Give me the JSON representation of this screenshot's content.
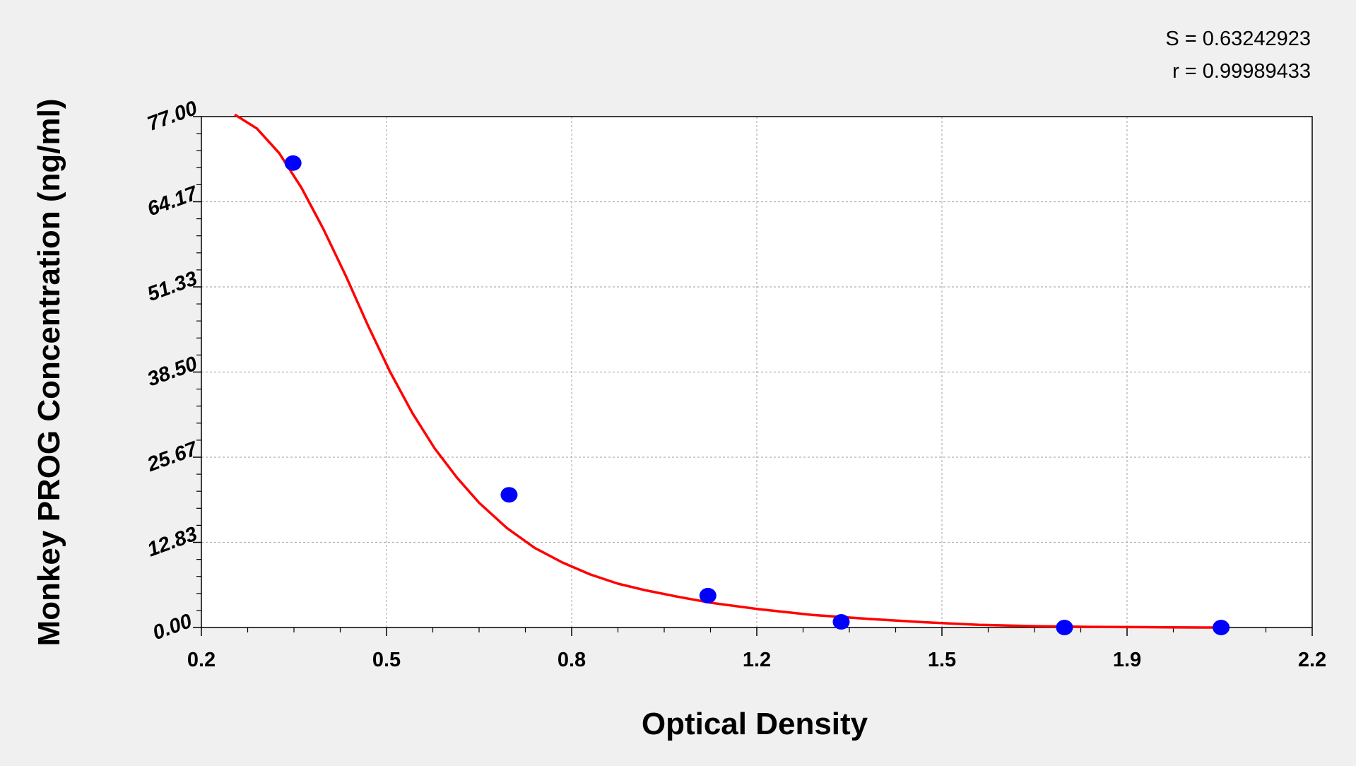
{
  "chart_data": {
    "type": "scatter",
    "title": "",
    "xlabel": "Optical Density",
    "ylabel": "Monkey PROG Concentration (ng/ml)",
    "xlim": [
      0.2,
      2.2
    ],
    "ylim": [
      0,
      77
    ],
    "x_ticks": [
      "0.2",
      "0.5",
      "0.8",
      "1.2",
      "1.5",
      "1.9",
      "2.2"
    ],
    "y_ticks": [
      "0.00",
      "12.83",
      "25.67",
      "38.50",
      "51.33",
      "64.17",
      "77.00"
    ],
    "grid": true,
    "annotations": [
      "S = 0.63242923",
      "r = 0.99989433"
    ],
    "series": [
      {
        "kind": "points",
        "color": "#0000ff",
        "x": [
          0.365,
          0.754,
          1.112,
          1.352,
          1.754,
          2.036
        ],
        "y": [
          70.0,
          20.0,
          4.8,
          0.85,
          0.0,
          0.0
        ]
      },
      {
        "kind": "fit_curve",
        "color": "#ff0000",
        "x": [
          0.26,
          0.3,
          0.34,
          0.38,
          0.42,
          0.46,
          0.5,
          0.54,
          0.58,
          0.62,
          0.66,
          0.7,
          0.75,
          0.8,
          0.85,
          0.9,
          0.95,
          1.0,
          1.06,
          1.12,
          1.2,
          1.3,
          1.4,
          1.5,
          1.6,
          1.7,
          1.8,
          1.9,
          2.0,
          2.05
        ],
        "y": [
          77.3,
          75.2,
          71.5,
          66.3,
          60.0,
          53.0,
          45.5,
          38.5,
          32.3,
          27.0,
          22.6,
          18.8,
          15.0,
          12.0,
          9.8,
          8.0,
          6.6,
          5.6,
          4.6,
          3.7,
          2.8,
          1.9,
          1.3,
          0.8,
          0.4,
          0.2,
          0.1,
          0.05,
          0.0,
          0.0
        ]
      }
    ]
  }
}
